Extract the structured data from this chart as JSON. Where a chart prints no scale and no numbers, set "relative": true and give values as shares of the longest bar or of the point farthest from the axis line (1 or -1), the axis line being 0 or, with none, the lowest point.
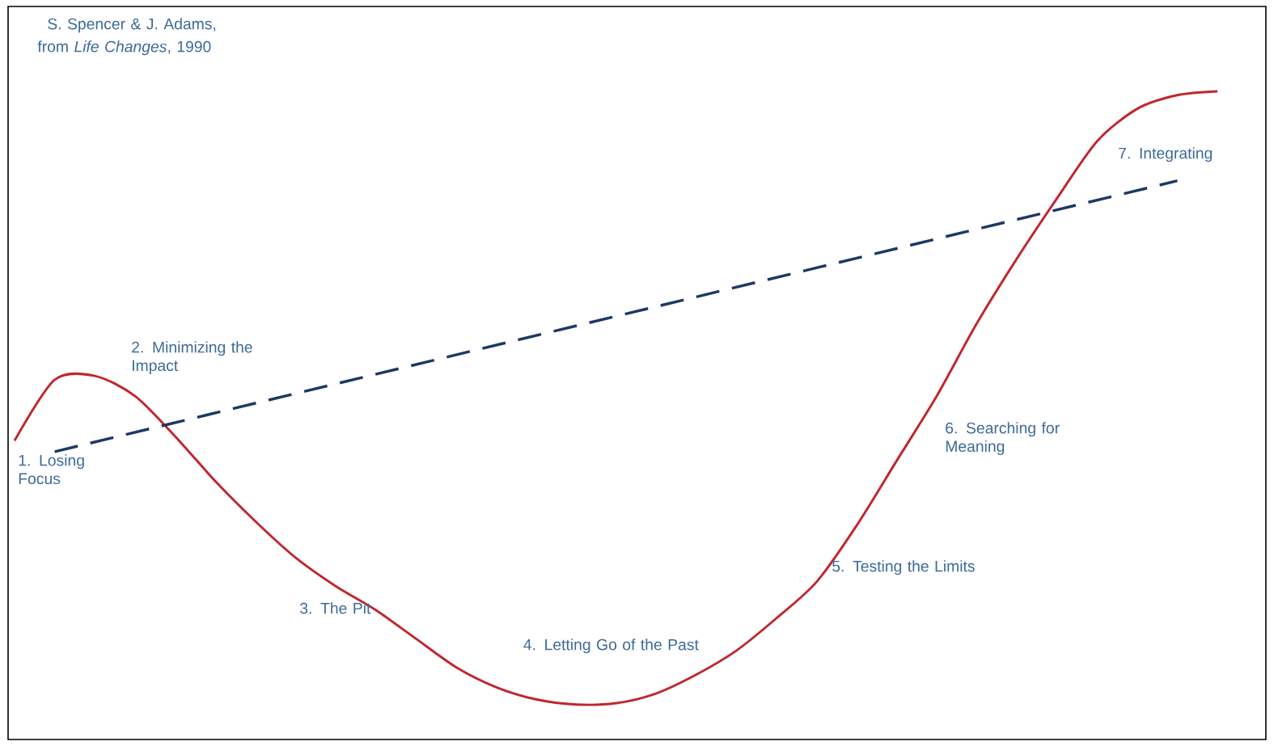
{
  "chart_data": {
    "type": "line",
    "relative": true,
    "categories": [
      null,
      null,
      null,
      null,
      null,
      null,
      null,
      null,
      null,
      null,
      null,
      null,
      null,
      null,
      null,
      null,
      null,
      null,
      null,
      null,
      null,
      null,
      null,
      null,
      null,
      null,
      null,
      null,
      null,
      null,
      null
    ],
    "series": [
      {
        "color": "#c0272d",
        "line_style": "solid",
        "values": [
          0.461,
          0.555,
          0.561,
          0.53,
          0.468,
          0.399,
          0.337,
          0.281,
          0.237,
          0.2,
          0.156,
          0.112,
          0.081,
          0.062,
          0.054,
          0.056,
          0.071,
          0.1,
          0.137,
          0.187,
          0.243,
          0.33,
          0.43,
          0.53,
          0.642,
          0.742,
          0.835,
          0.923,
          0.973,
          0.994,
          1
        ]
      },
      {
        "color": "#1f3864",
        "line_style": "dashed",
        "values": [
          null,
          0.444,
          null,
          null,
          null,
          null,
          null,
          null,
          null,
          null,
          null,
          null,
          null,
          null,
          null,
          null,
          null,
          null,
          null,
          null,
          null,
          null,
          null,
          null,
          null,
          null,
          null,
          null,
          null,
          0.862,
          null
        ]
      }
    ],
    "annotations": [
      "S. Spencer & J. Adams,",
      "from *Life Changes*, 1990",
      "1. Losing Focus",
      "2. Minimizing the Impact",
      "3. The Pit",
      "4. Letting Go of the Past",
      "5. Testing the Limits",
      "6. Searching for Meaning",
      "7. Integrating"
    ],
    "marker": "none"
  }
}
